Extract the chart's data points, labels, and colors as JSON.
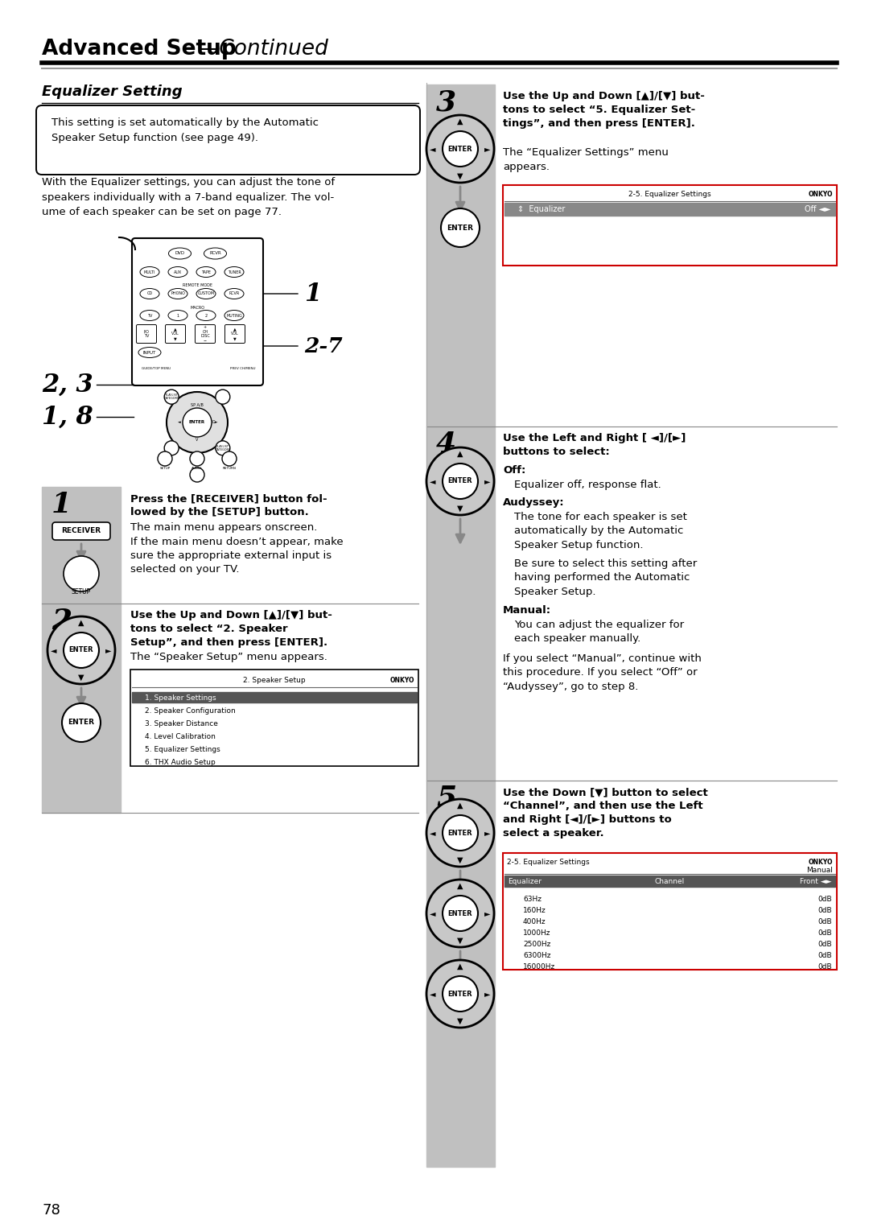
{
  "title_bold": "Advanced Setup",
  "title_em": "Continued",
  "section_title": "Equalizer Setting",
  "note_text": "This setting is set automatically by the Automatic\nSpeaker Setup function (see page 49).",
  "body_text": "With the Equalizer settings, you can adjust the tone of\nspeakers individually with a 7-band equalizer. The vol-\nume of each speaker can be set on page 77.",
  "label_1": "1",
  "label_27": "2-7",
  "label_23": "2, 3",
  "label_18": "1, 8",
  "step1_num": "1",
  "step1_bold": "Press the [RECEIVER] button fol-\nlowed by the [SETUP] button.",
  "step1_text": "The main menu appears onscreen.\nIf the main menu doesn’t appear, make\nsure the appropriate external input is\nselected on your TV.",
  "step2_num": "2",
  "step2_bold": "Use the Up and Down [▲]/[▼] but-\ntons to select “2. Speaker\nSetup”, and then press [ENTER].",
  "step2_text": "The “Speaker Setup” menu appears.",
  "menu2_title": "2. Speaker Setup",
  "menu2_items": [
    "1. Speaker Settings",
    "2. Speaker Configuration",
    "3. Speaker Distance",
    "4. Level Calibration",
    "5. Equalizer Settings",
    "6. THX Audio Setup"
  ],
  "step3_num": "3",
  "step3_bold": "Use the Up and Down [▲]/[▼] but-\ntons to select “5. Equalizer Set-\ntings”, and then press [ENTER].",
  "step3_text": "The “Equalizer Settings” menu\nappears.",
  "menu3_title": "2-5. Equalizer Settings",
  "menu3_row": "Equalizer",
  "menu3_val": "Off ◄►",
  "step4_num": "4",
  "step4_bold": "Use the Left and Right [ ◄]/[►]\nbuttons to select:",
  "step4_off_head": "Off:",
  "step4_off_text": "Equalizer off, response flat.",
  "step4_aud_head": "Audyssey:",
  "step4_aud_text1": "The tone for each speaker is set\nautomatically by the Automatic\nSpeaker Setup function.",
  "step4_aud_text2": "Be sure to select this setting after\nhaving performed the Automatic\nSpeaker Setup.",
  "step4_man_head": "Manual:",
  "step4_man_text": "You can adjust the equalizer for\neach speaker manually.",
  "step4_footer": "If you select “Manual”, continue with\nthis procedure. If you select “Off” or\n“Audyssey”, go to step 8.",
  "step5_num": "5",
  "step5_bold": "Use the Down [▼] button to select\n“Channel”, and then use the Left\nand Right [◄]/[►] buttons to\nselect a speaker.",
  "menu5_title": "2-5. Equalizer Settings",
  "menu5_right": "Manual",
  "menu5_head1": "Equalizer",
  "menu5_head2": "Channel",
  "menu5_head3": "Front ◄►",
  "menu5_freqs": [
    "63Hz",
    "160Hz",
    "400Hz",
    "1000Hz",
    "2500Hz",
    "6300Hz",
    "16000Hz"
  ],
  "menu5_vals": [
    "0dB",
    "0dB",
    "0dB",
    "0dB",
    "0dB",
    "0dB",
    "0dB"
  ],
  "page_num": "78",
  "bg_color": "#ffffff",
  "gray_bg": "#c0c0c0",
  "text_color": "#000000",
  "red_border": "#cc0000"
}
